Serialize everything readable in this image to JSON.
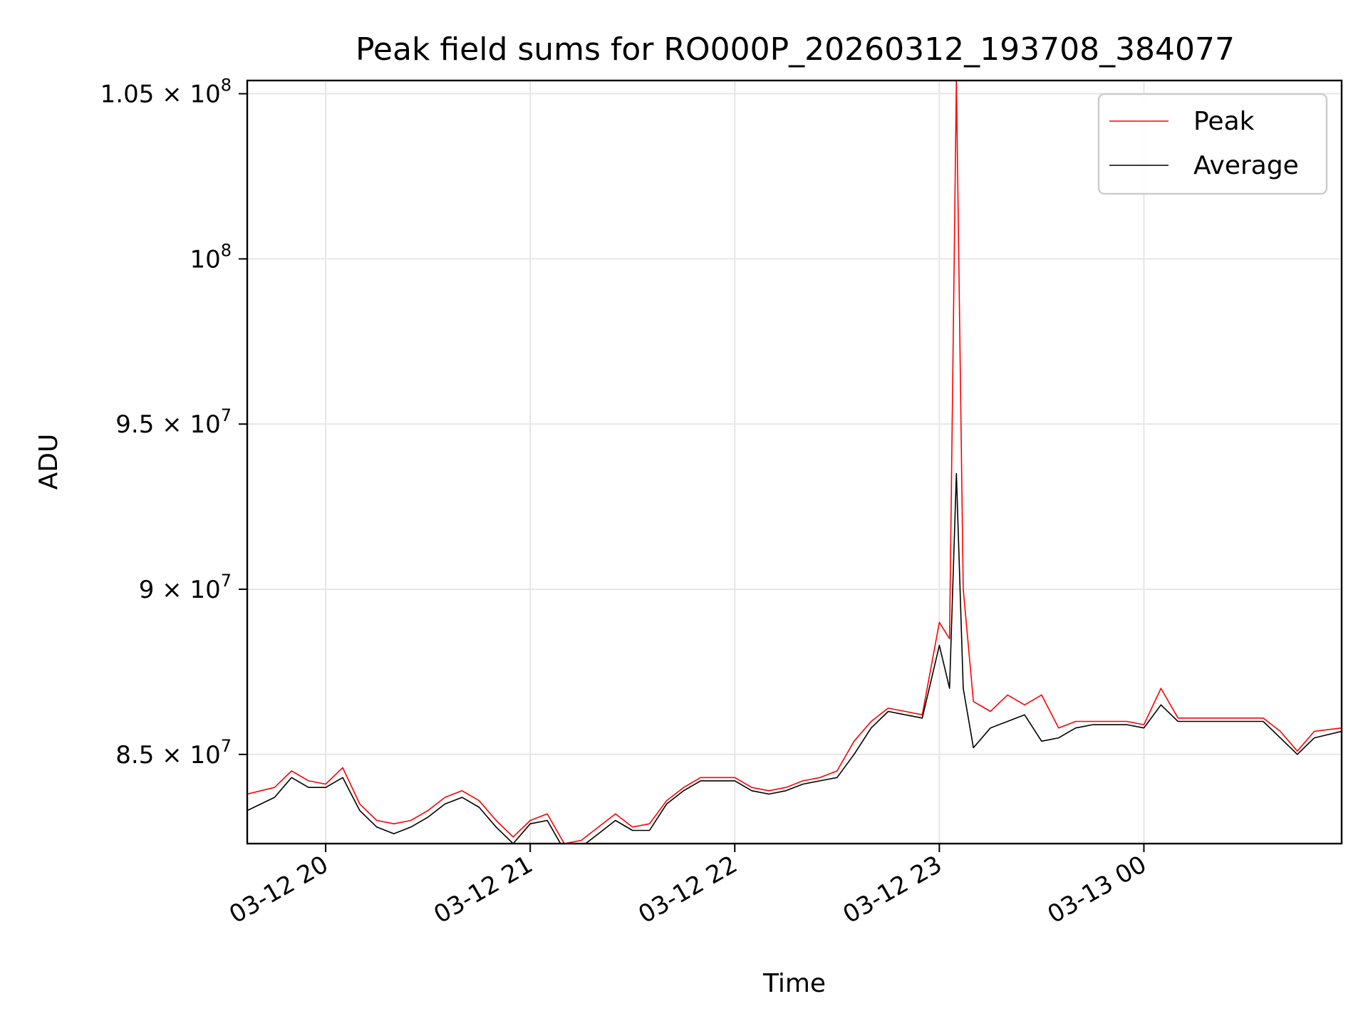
{
  "chart_data": {
    "type": "line",
    "title": "Peak field sums for RO000P_20260312_193708_384077",
    "xlabel": "Time",
    "ylabel": "ADU",
    "x_range": [
      "2026-03-12T19:37",
      "2026-03-13T00:58"
    ],
    "ylim": [
      82300000,
      105400000
    ],
    "grid": true,
    "legend_position": "top-right",
    "x_ticks": [
      {
        "value": "2026-03-12T20:00",
        "label": "03-12 20"
      },
      {
        "value": "2026-03-12T21:00",
        "label": "03-12 21"
      },
      {
        "value": "2026-03-12T22:00",
        "label": "03-12 22"
      },
      {
        "value": "2026-03-12T23:00",
        "label": "03-12 23"
      },
      {
        "value": "2026-03-13T00:00",
        "label": "03-13 00"
      }
    ],
    "y_ticks": [
      {
        "value": 85000000,
        "mantissa": "8.5",
        "exp": "7"
      },
      {
        "value": 90000000,
        "mantissa": "9",
        "exp": "7"
      },
      {
        "value": 95000000,
        "mantissa": "9.5",
        "exp": "7"
      },
      {
        "value": 100000000,
        "mantissa": "",
        "exp": "8"
      },
      {
        "value": 105000000,
        "mantissa": "1.05",
        "exp": "8"
      }
    ],
    "series": [
      {
        "name": "Peak",
        "color": "#ff0000",
        "x": [
          "2026-03-12T19:37",
          "2026-03-12T19:45",
          "2026-03-12T19:50",
          "2026-03-12T19:55",
          "2026-03-12T20:00",
          "2026-03-12T20:05",
          "2026-03-12T20:10",
          "2026-03-12T20:15",
          "2026-03-12T20:20",
          "2026-03-12T20:25",
          "2026-03-12T20:30",
          "2026-03-12T20:35",
          "2026-03-12T20:40",
          "2026-03-12T20:45",
          "2026-03-12T20:50",
          "2026-03-12T20:55",
          "2026-03-12T21:00",
          "2026-03-12T21:05",
          "2026-03-12T21:10",
          "2026-03-12T21:15",
          "2026-03-12T21:20",
          "2026-03-12T21:25",
          "2026-03-12T21:30",
          "2026-03-12T21:35",
          "2026-03-12T21:40",
          "2026-03-12T21:45",
          "2026-03-12T21:50",
          "2026-03-12T21:55",
          "2026-03-12T22:00",
          "2026-03-12T22:05",
          "2026-03-12T22:10",
          "2026-03-12T22:15",
          "2026-03-12T22:20",
          "2026-03-12T22:25",
          "2026-03-12T22:30",
          "2026-03-12T22:35",
          "2026-03-12T22:40",
          "2026-03-12T22:45",
          "2026-03-12T22:50",
          "2026-03-12T22:55",
          "2026-03-12T23:00",
          "2026-03-12T23:03",
          "2026-03-12T23:05",
          "2026-03-12T23:07",
          "2026-03-12T23:10",
          "2026-03-12T23:15",
          "2026-03-12T23:20",
          "2026-03-12T23:25",
          "2026-03-12T23:30",
          "2026-03-12T23:35",
          "2026-03-12T23:40",
          "2026-03-12T23:45",
          "2026-03-12T23:50",
          "2026-03-12T23:55",
          "2026-03-13T00:00",
          "2026-03-13T00:05",
          "2026-03-13T00:10",
          "2026-03-13T00:15",
          "2026-03-13T00:20",
          "2026-03-13T00:25",
          "2026-03-13T00:30",
          "2026-03-13T00:35",
          "2026-03-13T00:40",
          "2026-03-13T00:45",
          "2026-03-13T00:50",
          "2026-03-13T00:58"
        ],
        "values": [
          83800000,
          84000000,
          84500000,
          84200000,
          84100000,
          84600000,
          83500000,
          83000000,
          82900000,
          83000000,
          83300000,
          83700000,
          83900000,
          83600000,
          83000000,
          82500000,
          83000000,
          83200000,
          82300000,
          82400000,
          82800000,
          83200000,
          82800000,
          82900000,
          83600000,
          84000000,
          84300000,
          84300000,
          84300000,
          84000000,
          83900000,
          84000000,
          84200000,
          84300000,
          84500000,
          85400000,
          86000000,
          86400000,
          86300000,
          86200000,
          89000000,
          88500000,
          105400000,
          90000000,
          86600000,
          86300000,
          86800000,
          86500000,
          86800000,
          85800000,
          86000000,
          86000000,
          86000000,
          86000000,
          85900000,
          87000000,
          86100000,
          86100000,
          86100000,
          86100000,
          86100000,
          86100000,
          85700000,
          85100000,
          85700000,
          85800000
        ]
      },
      {
        "name": "Average",
        "color": "#000000",
        "x": [
          "2026-03-12T19:37",
          "2026-03-12T19:45",
          "2026-03-12T19:50",
          "2026-03-12T19:55",
          "2026-03-12T20:00",
          "2026-03-12T20:05",
          "2026-03-12T20:10",
          "2026-03-12T20:15",
          "2026-03-12T20:20",
          "2026-03-12T20:25",
          "2026-03-12T20:30",
          "2026-03-12T20:35",
          "2026-03-12T20:40",
          "2026-03-12T20:45",
          "2026-03-12T20:50",
          "2026-03-12T20:55",
          "2026-03-12T21:00",
          "2026-03-12T21:05",
          "2026-03-12T21:10",
          "2026-03-12T21:15",
          "2026-03-12T21:20",
          "2026-03-12T21:25",
          "2026-03-12T21:30",
          "2026-03-12T21:35",
          "2026-03-12T21:40",
          "2026-03-12T21:45",
          "2026-03-12T21:50",
          "2026-03-12T21:55",
          "2026-03-12T22:00",
          "2026-03-12T22:05",
          "2026-03-12T22:10",
          "2026-03-12T22:15",
          "2026-03-12T22:20",
          "2026-03-12T22:25",
          "2026-03-12T22:30",
          "2026-03-12T22:35",
          "2026-03-12T22:40",
          "2026-03-12T22:45",
          "2026-03-12T22:50",
          "2026-03-12T22:55",
          "2026-03-12T23:00",
          "2026-03-12T23:03",
          "2026-03-12T23:05",
          "2026-03-12T23:07",
          "2026-03-12T23:10",
          "2026-03-12T23:15",
          "2026-03-12T23:20",
          "2026-03-12T23:25",
          "2026-03-12T23:30",
          "2026-03-12T23:35",
          "2026-03-12T23:40",
          "2026-03-12T23:45",
          "2026-03-12T23:50",
          "2026-03-12T23:55",
          "2026-03-13T00:00",
          "2026-03-13T00:05",
          "2026-03-13T00:10",
          "2026-03-13T00:15",
          "2026-03-13T00:20",
          "2026-03-13T00:25",
          "2026-03-13T00:30",
          "2026-03-13T00:35",
          "2026-03-13T00:40",
          "2026-03-13T00:45",
          "2026-03-13T00:50",
          "2026-03-13T00:58"
        ],
        "values": [
          83300000,
          83700000,
          84300000,
          84000000,
          84000000,
          84300000,
          83300000,
          82800000,
          82600000,
          82800000,
          83100000,
          83500000,
          83700000,
          83400000,
          82800000,
          82300000,
          82900000,
          83000000,
          82100000,
          82200000,
          82600000,
          83000000,
          82700000,
          82700000,
          83500000,
          83900000,
          84200000,
          84200000,
          84200000,
          83900000,
          83800000,
          83900000,
          84100000,
          84200000,
          84300000,
          85000000,
          85800000,
          86300000,
          86200000,
          86100000,
          88300000,
          87000000,
          93500000,
          87000000,
          85200000,
          85800000,
          86000000,
          86200000,
          85400000,
          85500000,
          85800000,
          85900000,
          85900000,
          85900000,
          85800000,
          86500000,
          86000000,
          86000000,
          86000000,
          86000000,
          86000000,
          86000000,
          85500000,
          85000000,
          85500000,
          85700000
        ]
      }
    ]
  }
}
